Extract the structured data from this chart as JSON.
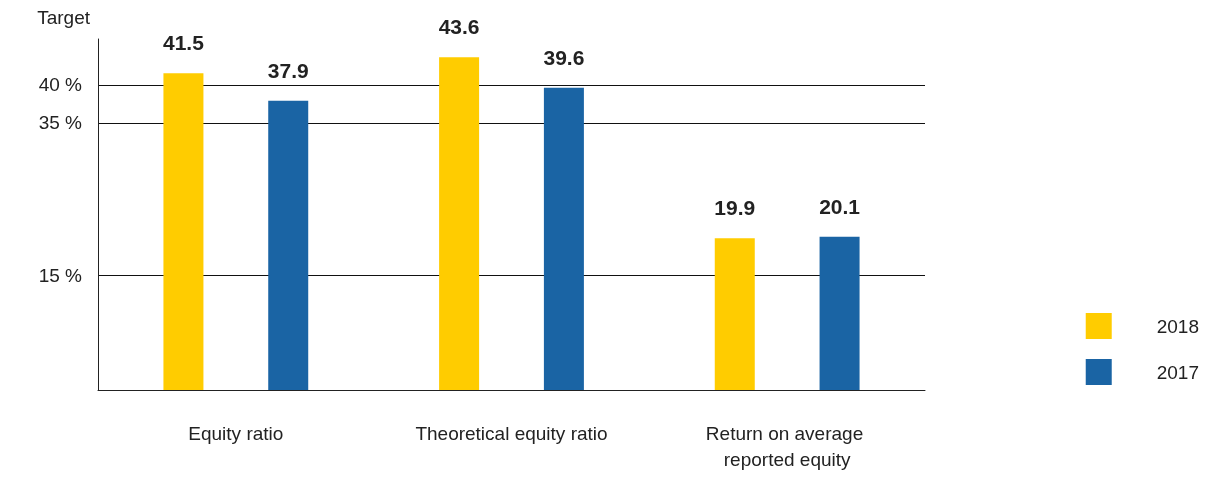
{
  "chart_data": {
    "type": "bar",
    "ylabel": "Target",
    "categories": [
      "Equity ratio",
      "Theoretical equity ratio",
      "Return on average reported equity"
    ],
    "series": [
      {
        "name": "2018",
        "color": "#ffcc00",
        "values": [
          41.5,
          43.6,
          19.9
        ]
      },
      {
        "name": "2017",
        "color": "#1a64a4",
        "values": [
          37.9,
          39.6,
          20.1
        ]
      }
    ],
    "ylim": [
      0,
      46
    ],
    "yticks": [
      {
        "value": 15,
        "label": "15 %"
      },
      {
        "value": 35,
        "label": "35 %"
      },
      {
        "value": 40,
        "label": "40 %"
      }
    ],
    "grid": "y",
    "data_labels": true,
    "legend": "bottom right"
  }
}
